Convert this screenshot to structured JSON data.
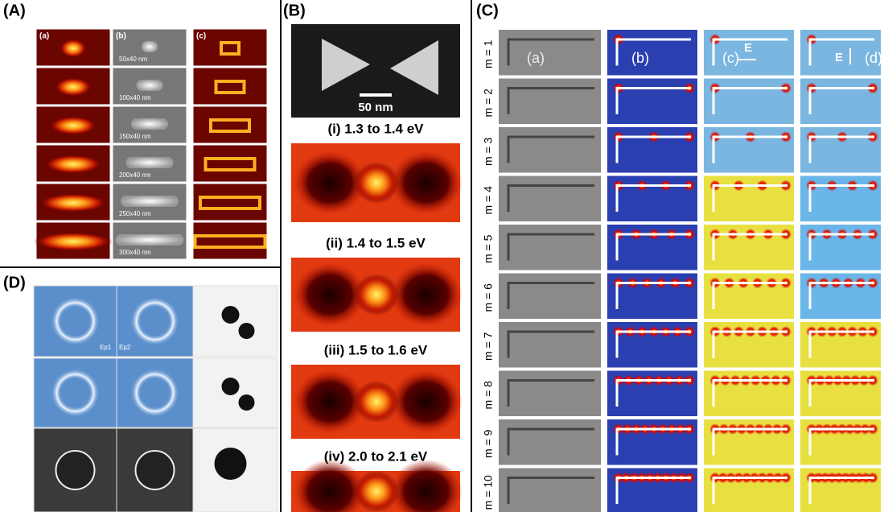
{
  "panels": {
    "a": {
      "label": "(A)",
      "column_labels": [
        "(a)",
        "(b)",
        "(c)"
      ],
      "size_labels": [
        "50x40 nm",
        "100x40 nm",
        "150x40 nm",
        "200x40 nm",
        "250x40 nm",
        "300x40 nm"
      ]
    },
    "b": {
      "label": "(B)",
      "scale_bar": "50 nm",
      "energy_labels": [
        "(i) 1.3 to 1.4 eV",
        "(ii) 1.4 to 1.5 eV",
        "(iii) 1.5 to 1.6 eV",
        "(iv) 2.0 to 2.1 eV"
      ]
    },
    "c": {
      "label": "(C)",
      "column_labels": [
        "(a)",
        "(b)",
        "(c)",
        "(d)"
      ],
      "field_labels": [
        "E",
        "E"
      ],
      "mode_labels": [
        "m = 1",
        "m = 2",
        "m = 3",
        "m = 4",
        "m = 5",
        "m = 6",
        "m = 7",
        "m = 8",
        "m = 9",
        "m = 10"
      ]
    },
    "d": {
      "label": "(D)",
      "polarization_labels": [
        "Ep1",
        "Ep2"
      ]
    }
  }
}
